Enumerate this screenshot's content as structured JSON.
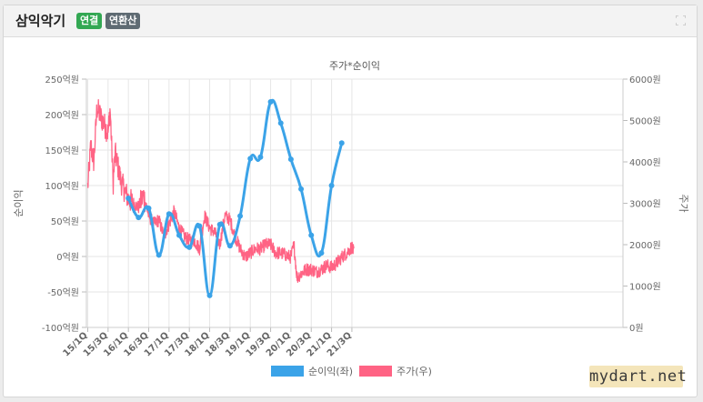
{
  "header": {
    "company": "삼익악기",
    "badge_conn": "연결",
    "badge_annual": "연환산"
  },
  "watermark": "mydart.net",
  "colors": {
    "profit": "#3ba3e8",
    "price": "#ff6384",
    "grid": "#e6e6e6",
    "axis_text": "#666666"
  },
  "chart_data": {
    "type": "line",
    "title": "주가*순이익",
    "y_left_label": "순이익",
    "y_right_label": "주가",
    "y_left_ticks": [
      "250억원",
      "200억원",
      "150억원",
      "100억원",
      "50억원",
      "0억원",
      "-50억원",
      "-100억원"
    ],
    "y_right_ticks": [
      "6000원",
      "5000원",
      "4000원",
      "3000원",
      "2000원",
      "1000원",
      "0원"
    ],
    "y_left_range": [
      -100,
      250
    ],
    "y_right_range": [
      0,
      6000
    ],
    "x_ticks": [
      "15/1Q",
      "15/3Q",
      "16/1Q",
      "16/3Q",
      "17/1Q",
      "17/3Q",
      "18/1Q",
      "18/3Q",
      "19/1Q",
      "19/3Q",
      "20/1Q",
      "20/3Q",
      "21/1Q",
      "21/3Q"
    ],
    "series": [
      {
        "name": "순이익(좌)",
        "axis": "left",
        "x": [
          "16/1Q",
          "16/2Q",
          "16/3Q",
          "16/4Q",
          "17/1Q",
          "17/2Q",
          "17/3Q",
          "17/4Q",
          "18/1Q",
          "18/2Q",
          "18/3Q",
          "18/4Q",
          "19/1Q",
          "19/2Q",
          "19/3Q",
          "19/4Q",
          "20/1Q",
          "20/2Q",
          "20/3Q",
          "20/4Q",
          "21/1Q",
          "21/2Q"
        ],
        "values": [
          82,
          55,
          68,
          2,
          60,
          30,
          13,
          43,
          -55,
          45,
          15,
          57,
          138,
          140,
          218,
          188,
          137,
          95,
          30,
          5,
          100,
          160
        ]
      },
      {
        "name": "주가(우)",
        "axis": "right",
        "anchors": [
          [
            "15/1Q",
            3400
          ],
          [
            "15/1Q+0.3",
            4400
          ],
          [
            "15/1Q+0.6",
            4000
          ],
          [
            "15/1Q+0.9",
            5300
          ],
          [
            "15/3Q",
            4700
          ],
          [
            "15/3Q+0.2",
            5300
          ],
          [
            "15/3Q+0.5",
            3500
          ],
          [
            "15/3Q+0.7",
            4200
          ],
          [
            "15/4Q+0.3",
            3500
          ],
          [
            "16/1Q",
            3100
          ],
          [
            "16/1Q+0.5",
            3000
          ],
          [
            "16/2Q",
            2900
          ],
          [
            "16/2Q+0.5",
            3200
          ],
          [
            "16/3Q",
            2700
          ],
          [
            "16/3Q+0.5",
            2500
          ],
          [
            "16/4Q",
            2600
          ],
          [
            "16/4Q+0.5",
            2200
          ],
          [
            "17/1Q",
            2500
          ],
          [
            "17/1Q+0.5",
            2800
          ],
          [
            "17/2Q",
            2400
          ],
          [
            "17/2Q+0.5",
            2200
          ],
          [
            "17/3Q",
            2100
          ],
          [
            "17/3Q+0.5",
            2100
          ],
          [
            "17/4Q",
            1900
          ],
          [
            "17/4Q+0.5",
            2700
          ],
          [
            "18/1Q",
            2400
          ],
          [
            "18/1Q+0.5",
            2300
          ],
          [
            "18/2Q",
            2000
          ],
          [
            "18/2Q+0.5",
            2700
          ],
          [
            "18/3Q",
            2600
          ],
          [
            "18/3Q+0.5",
            2200
          ],
          [
            "18/4Q",
            1900
          ],
          [
            "18/4Q+0.5",
            1700
          ],
          [
            "19/1Q",
            1800
          ],
          [
            "19/1Q+0.5",
            1900
          ],
          [
            "19/2Q",
            1900
          ],
          [
            "19/2Q+0.5",
            2000
          ],
          [
            "19/3Q",
            2000
          ],
          [
            "19/3Q+0.5",
            1800
          ],
          [
            "19/4Q",
            1800
          ],
          [
            "19/4Q+0.5",
            1750
          ],
          [
            "20/1Q",
            1700
          ],
          [
            "20/1Q+0.3",
            2000
          ],
          [
            "20/1Q+0.6",
            1200
          ],
          [
            "20/2Q",
            1300
          ],
          [
            "20/2Q+0.5",
            1400
          ],
          [
            "20/3Q",
            1400
          ],
          [
            "20/3Q+0.5",
            1350
          ],
          [
            "20/4Q",
            1400
          ],
          [
            "20/4Q+0.5",
            1500
          ],
          [
            "21/1Q",
            1450
          ],
          [
            "21/1Q+0.5",
            1550
          ],
          [
            "21/2Q",
            1700
          ],
          [
            "21/2Q+0.5",
            1800
          ],
          [
            "21/3Q",
            1950
          ],
          [
            "21/3Q+0.2",
            1800
          ]
        ]
      }
    ],
    "legend_position": "bottom",
    "grid": true
  }
}
